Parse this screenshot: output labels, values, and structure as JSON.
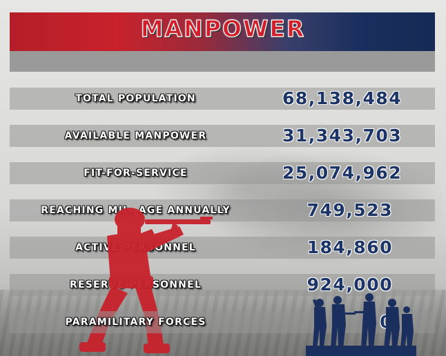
{
  "header": {
    "title": "MANPOWER"
  },
  "rows": [
    {
      "label": "TOTAL POPULATION",
      "value": "68,138,484"
    },
    {
      "label": "AVAILABLE MANPOWER",
      "value": "31,343,703"
    },
    {
      "label": "FIT-FOR-SERVICE",
      "value": "25,074,962"
    },
    {
      "label": "REACHING MIL. AGE ANNUALLY",
      "value": "749,523"
    },
    {
      "label": "ACTIVE PERSONNEL",
      "value": "184,860"
    },
    {
      "label": "RESERVE PERSONNEL",
      "value": "924,000"
    },
    {
      "label": "PARAMILITARY FORCES",
      "value": "0"
    }
  ],
  "colors": {
    "red": "#c8222c",
    "navy": "#1b2f5e",
    "row_bg": "#9a9a9a"
  },
  "icons": [
    "soldier-silhouette-red",
    "soldier-group-silhouette-navy"
  ]
}
